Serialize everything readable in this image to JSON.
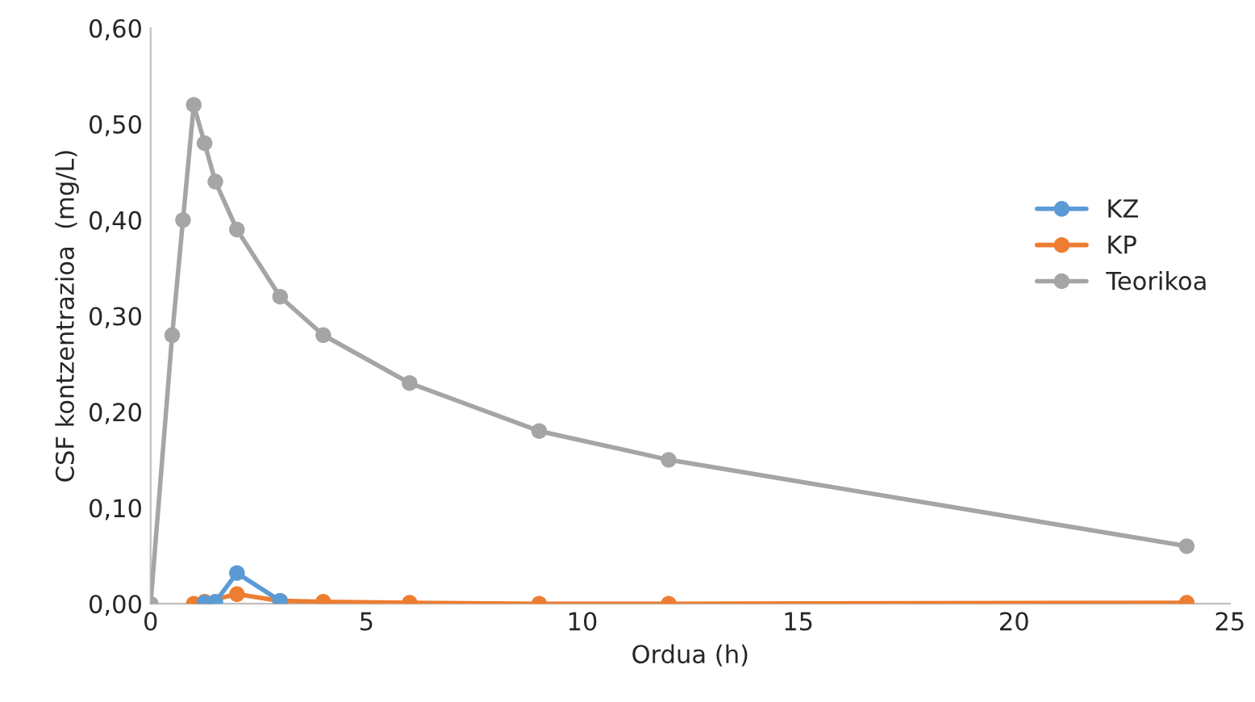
{
  "chart_data": {
    "type": "line",
    "xlabel": "Ordua (h)",
    "ylabel": "CSF kontzentrazioa  (mg/L)",
    "xlim": [
      0,
      25
    ],
    "xticks": [
      0,
      5,
      10,
      15,
      20,
      25
    ],
    "ylim": [
      0,
      0.6
    ],
    "yticks": [
      {
        "value": 0,
        "label": "0,00"
      },
      {
        "value": 0.1,
        "label": "0,10"
      },
      {
        "value": 0.2,
        "label": "0,20"
      },
      {
        "value": 0.3,
        "label": "0,30"
      },
      {
        "value": 0.4,
        "label": "0,40"
      },
      {
        "value": 0.5,
        "label": "0,50"
      },
      {
        "value": 0.6,
        "label": "0,60"
      }
    ],
    "grid": false,
    "legend": "right",
    "marker": "circle",
    "line_style": "solid",
    "series": [
      {
        "name": "KZ",
        "color": "#5b9bd5",
        "x": [
          1.25,
          1.5,
          2,
          3
        ],
        "values": [
          0.001,
          0.002,
          0.032,
          0.003
        ]
      },
      {
        "name": "KP",
        "color": "#ed7d31",
        "x": [
          1,
          1.25,
          2,
          3,
          4,
          6,
          9,
          12,
          24
        ],
        "values": [
          0.0,
          0.002,
          0.01,
          0.003,
          0.002,
          0.001,
          0.0,
          0.0,
          0.001
        ]
      },
      {
        "name": "Teorikoa",
        "color": "#a5a5a5",
        "x": [
          0,
          0.5,
          0.75,
          1,
          1.25,
          1.5,
          2,
          3,
          4,
          6,
          9,
          12,
          24
        ],
        "values": [
          0.0,
          0.28,
          0.4,
          0.52,
          0.48,
          0.44,
          0.39,
          0.32,
          0.28,
          0.23,
          0.18,
          0.15,
          0.06
        ]
      }
    ]
  }
}
